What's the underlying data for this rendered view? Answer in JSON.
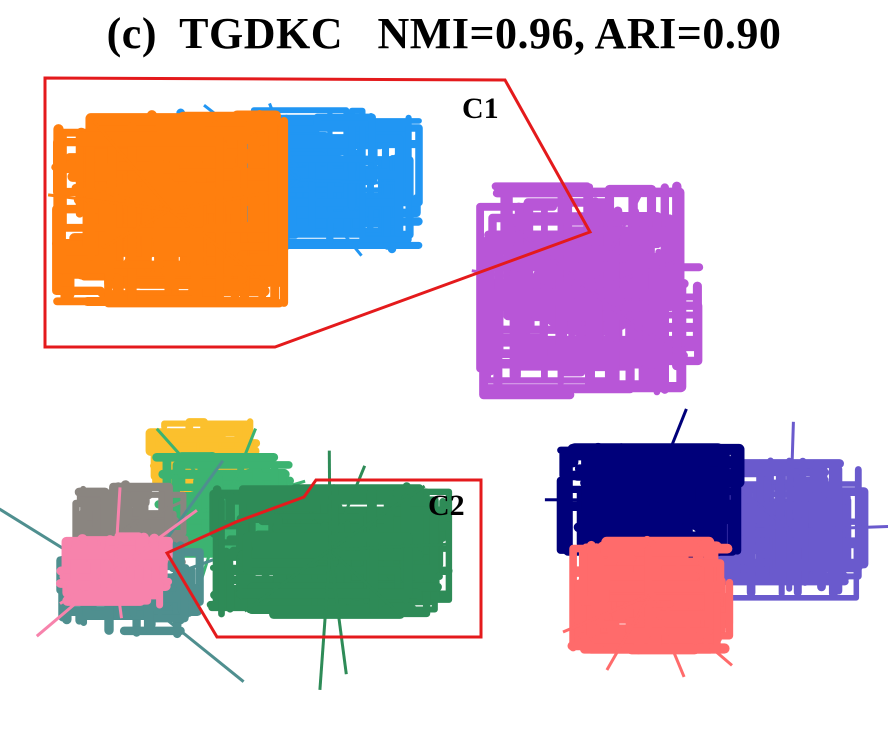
{
  "chart_data": {
    "type": "scatter",
    "title": "(c)  TGDKC   NMI=0.96, ARI=0.90",
    "regions": [
      {
        "label": "C1",
        "color": "#e41a1c"
      },
      {
        "label": "C2",
        "color": "#e41a1c"
      }
    ],
    "series": [
      {
        "color": "#ff7f0e"
      },
      {
        "color": "#2196f3"
      },
      {
        "color": "#b856d7"
      },
      {
        "color": "#fbc02d"
      },
      {
        "color": "#3cb371"
      },
      {
        "color": "#2e8b57"
      },
      {
        "color": "#8a8580"
      },
      {
        "color": "#f783ac"
      },
      {
        "color": "#4f8f8f"
      },
      {
        "color": "#00007a"
      },
      {
        "color": "#6a5acd"
      },
      {
        "color": "#ff6b6b"
      }
    ]
  }
}
